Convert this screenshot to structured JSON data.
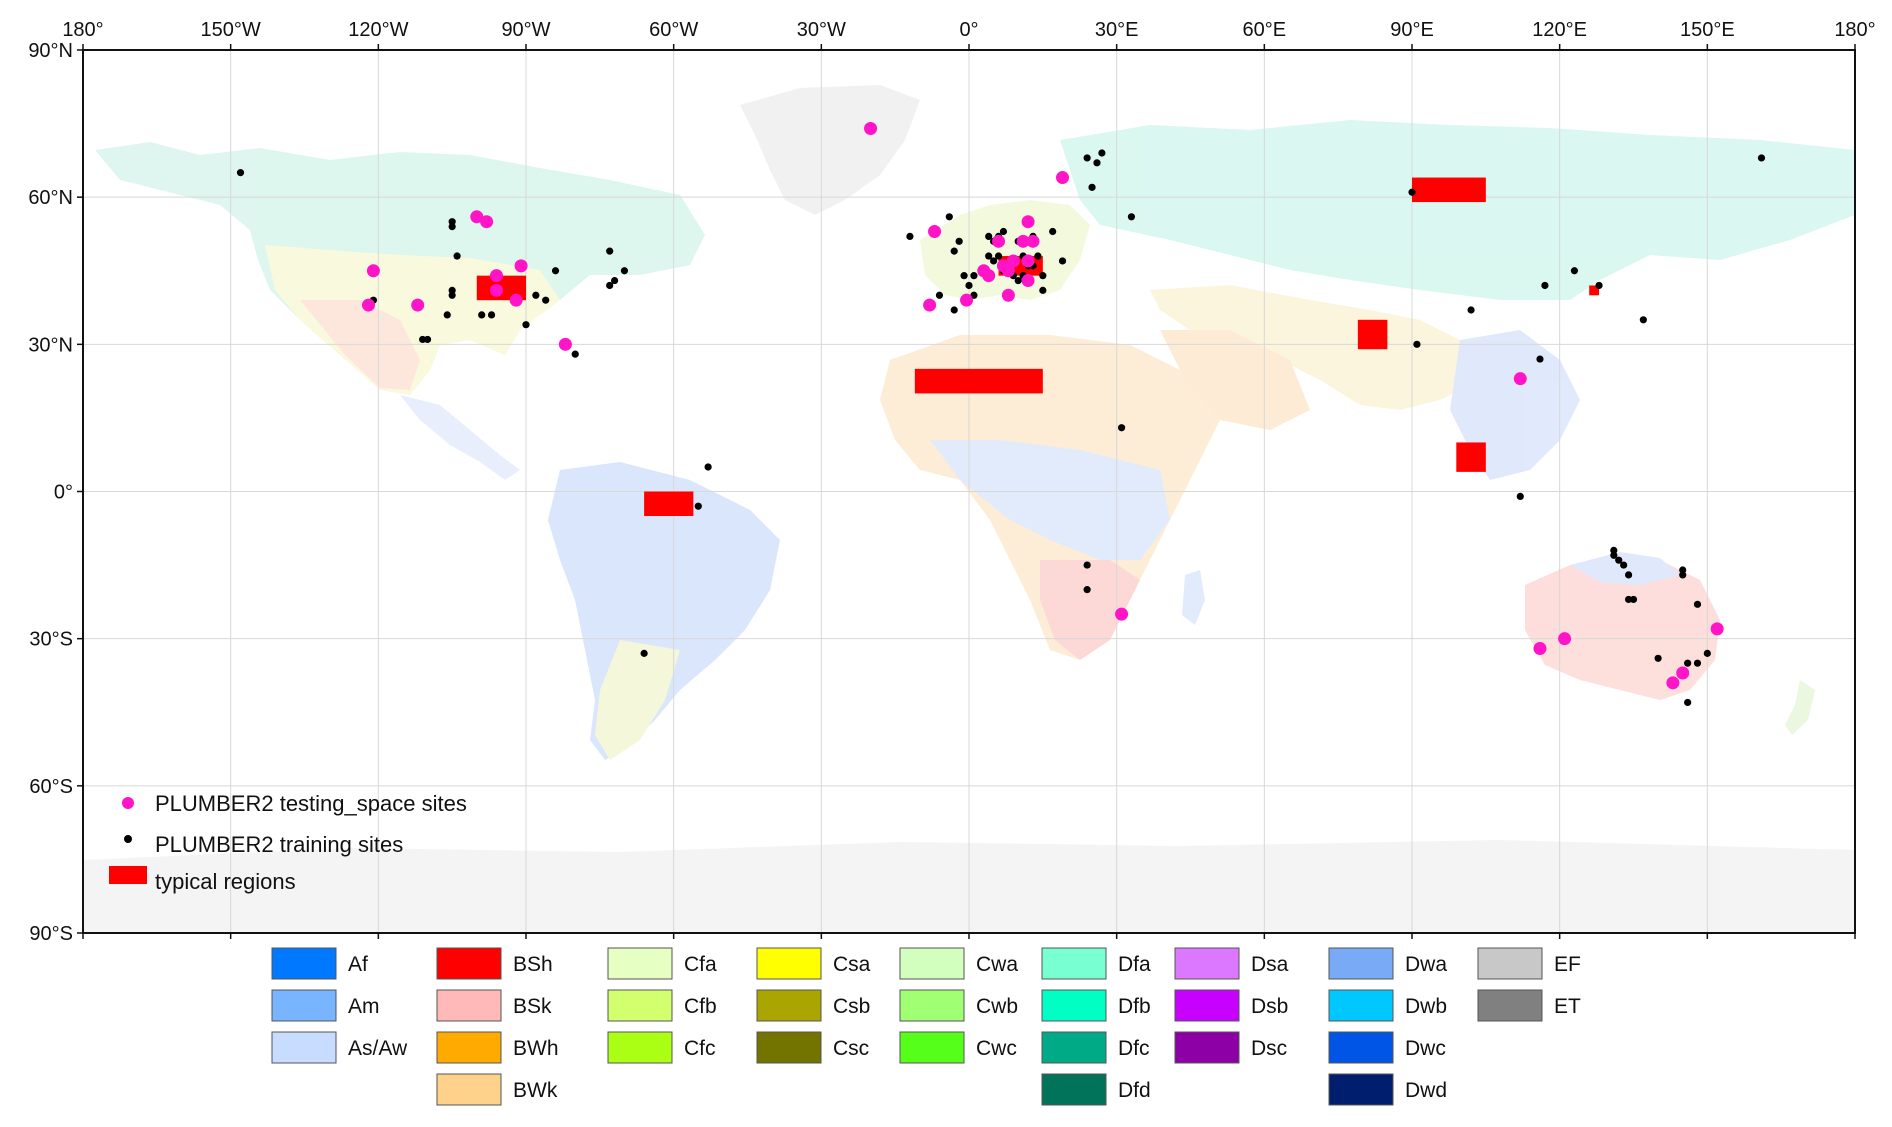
{
  "map": {
    "x_ticks": [
      {
        "lon": -180,
        "label": "180°"
      },
      {
        "lon": -150,
        "label": "150°W"
      },
      {
        "lon": -120,
        "label": "120°W"
      },
      {
        "lon": -90,
        "label": "90°W"
      },
      {
        "lon": -60,
        "label": "60°W"
      },
      {
        "lon": -30,
        "label": "30°W"
      },
      {
        "lon": 0,
        "label": "0°"
      },
      {
        "lon": 30,
        "label": "30°E"
      },
      {
        "lon": 60,
        "label": "60°E"
      },
      {
        "lon": 90,
        "label": "90°E"
      },
      {
        "lon": 120,
        "label": "120°E"
      },
      {
        "lon": 150,
        "label": "150°E"
      },
      {
        "lon": 180,
        "label": "180°"
      }
    ],
    "y_ticks": [
      {
        "lat": 90,
        "label": "90°N"
      },
      {
        "lat": 60,
        "label": "60°N"
      },
      {
        "lat": 30,
        "label": "30°N"
      },
      {
        "lat": 0,
        "label": "0°"
      },
      {
        "lat": -30,
        "label": "30°S"
      },
      {
        "lat": -60,
        "label": "60°S"
      },
      {
        "lat": -90,
        "label": "90°S"
      }
    ],
    "grid": true,
    "legend": {
      "placement": "bottom-left",
      "items": [
        {
          "label": "PLUMBER2 testing_space sites",
          "kind": "testing"
        },
        {
          "label": "PLUMBER2 training sites",
          "kind": "training"
        },
        {
          "label": "typical regions",
          "kind": "region"
        }
      ]
    },
    "colors": {
      "testing": "#ff14c8",
      "training": "#000000",
      "region": "#ff0000",
      "ocean": "#ffffff"
    },
    "typical_regions": [
      {
        "lon": [
          -100,
          -90
        ],
        "lat": [
          39,
          44
        ]
      },
      {
        "lon": [
          -11,
          15
        ],
        "lat": [
          20,
          25
        ]
      },
      {
        "lon": [
          -66,
          -56
        ],
        "lat": [
          -5,
          0
        ]
      },
      {
        "lon": [
          6,
          15
        ],
        "lat": [
          44,
          48
        ]
      },
      {
        "lon": [
          90,
          105
        ],
        "lat": [
          59,
          64
        ]
      },
      {
        "lon": [
          79,
          85
        ],
        "lat": [
          29,
          35
        ]
      },
      {
        "lon": [
          99,
          105
        ],
        "lat": [
          4,
          10
        ]
      },
      {
        "lon": [
          126,
          128
        ],
        "lat": [
          40,
          42
        ]
      }
    ],
    "testing_sites": [
      [
        -20,
        74
      ],
      [
        -100,
        56
      ],
      [
        -98,
        55
      ],
      [
        -121,
        45
      ],
      [
        -122,
        38
      ],
      [
        -112,
        38
      ],
      [
        -96,
        44
      ],
      [
        -96,
        41
      ],
      [
        -92,
        39
      ],
      [
        -91,
        46
      ],
      [
        -82,
        30
      ],
      [
        -7,
        53
      ],
      [
        -8,
        38
      ],
      [
        -0.5,
        39
      ],
      [
        3,
        45
      ],
      [
        4,
        44
      ],
      [
        6,
        51
      ],
      [
        7,
        46
      ],
      [
        8,
        45
      ],
      [
        9,
        47
      ],
      [
        8,
        40
      ],
      [
        11,
        51
      ],
      [
        12,
        55
      ],
      [
        13,
        51
      ],
      [
        12,
        43
      ],
      [
        12,
        47
      ],
      [
        19,
        64
      ],
      [
        31,
        -25
      ],
      [
        112,
        23
      ],
      [
        116,
        -32
      ],
      [
        121,
        -30
      ],
      [
        143,
        -39
      ],
      [
        145,
        -37
      ],
      [
        152,
        -28
      ]
    ],
    "training_sites": [
      [
        -148,
        65
      ],
      [
        -105,
        54
      ],
      [
        -105,
        55
      ],
      [
        -104,
        48
      ],
      [
        -105,
        41
      ],
      [
        -105,
        40
      ],
      [
        -106,
        36
      ],
      [
        -97,
        36
      ],
      [
        -99,
        36
      ],
      [
        -110,
        31
      ],
      [
        -111,
        31
      ],
      [
        -121,
        39
      ],
      [
        -90,
        34
      ],
      [
        -88,
        40
      ],
      [
        -86,
        39
      ],
      [
        -84,
        45
      ],
      [
        -80,
        28
      ],
      [
        -73,
        49
      ],
      [
        -72,
        43
      ],
      [
        -70,
        45
      ],
      [
        -73,
        42
      ],
      [
        -53,
        5
      ],
      [
        -55,
        -3
      ],
      [
        -66,
        -33
      ],
      [
        -12,
        52
      ],
      [
        -4,
        56
      ],
      [
        -2,
        51
      ],
      [
        -3,
        49
      ],
      [
        -1,
        44
      ],
      [
        -6,
        40
      ],
      [
        1,
        44
      ],
      [
        0,
        42
      ],
      [
        1,
        40
      ],
      [
        -3,
        37
      ],
      [
        4,
        52
      ],
      [
        4,
        48
      ],
      [
        5,
        51
      ],
      [
        5,
        47
      ],
      [
        6,
        52
      ],
      [
        7,
        53
      ],
      [
        6,
        48
      ],
      [
        7,
        45
      ],
      [
        9,
        47
      ],
      [
        9,
        44
      ],
      [
        10,
        51
      ],
      [
        10,
        43
      ],
      [
        11,
        48
      ],
      [
        11,
        44
      ],
      [
        12,
        46
      ],
      [
        13,
        52
      ],
      [
        13,
        46
      ],
      [
        14,
        48
      ],
      [
        15,
        44
      ],
      [
        15,
        41
      ],
      [
        17,
        53
      ],
      [
        19,
        47
      ],
      [
        24,
        68
      ],
      [
        25,
        62
      ],
      [
        26,
        67
      ],
      [
        27,
        69
      ],
      [
        33,
        56
      ],
      [
        31,
        13
      ],
      [
        24,
        -15
      ],
      [
        24,
        -20
      ],
      [
        90,
        61
      ],
      [
        91,
        30
      ],
      [
        102,
        37
      ],
      [
        112,
        -1
      ],
      [
        116,
        27
      ],
      [
        117,
        42
      ],
      [
        123,
        45
      ],
      [
        128,
        42
      ],
      [
        137,
        35
      ],
      [
        161,
        68
      ],
      [
        131,
        -12
      ],
      [
        131,
        -13
      ],
      [
        132,
        -14
      ],
      [
        133,
        -15
      ],
      [
        134,
        -17
      ],
      [
        134,
        -22
      ],
      [
        135,
        -22
      ],
      [
        145,
        -16
      ],
      [
        145,
        -17
      ],
      [
        148,
        -23
      ],
      [
        140,
        -34
      ],
      [
        146,
        -35
      ],
      [
        148,
        -35
      ],
      [
        150,
        -33
      ],
      [
        146,
        -43
      ]
    ],
    "koppen_legend": [
      {
        "label": "Af",
        "color": "#0078ff"
      },
      {
        "label": "Am",
        "color": "#78b4ff"
      },
      {
        "label": "As/Aw",
        "color": "#c8dcff"
      },
      {
        "label": "BSh",
        "color": "#ff0000"
      },
      {
        "label": "BSk",
        "color": "#ffb9b9"
      },
      {
        "label": "BWh",
        "color": "#ffaa00"
      },
      {
        "label": "BWk",
        "color": "#ffd28c"
      },
      {
        "label": "Cfa",
        "color": "#e6ffc3"
      },
      {
        "label": "Cfb",
        "color": "#d2ff6e"
      },
      {
        "label": "Cfc",
        "color": "#aaff14"
      },
      {
        "label": "Csa",
        "color": "#ffff00"
      },
      {
        "label": "Csb",
        "color": "#aaa500"
      },
      {
        "label": "Csc",
        "color": "#737300"
      },
      {
        "label": "Cwa",
        "color": "#d2ffbe"
      },
      {
        "label": "Cwb",
        "color": "#a0ff73"
      },
      {
        "label": "Cwc",
        "color": "#55ff19"
      },
      {
        "label": "Dfa",
        "color": "#78ffd2"
      },
      {
        "label": "Dfb",
        "color": "#00ffc3"
      },
      {
        "label": "Dfc",
        "color": "#00aa87"
      },
      {
        "label": "Dfd",
        "color": "#00735a"
      },
      {
        "label": "Dsa",
        "color": "#dc78ff"
      },
      {
        "label": "Dsb",
        "color": "#c800ff"
      },
      {
        "label": "Dsc",
        "color": "#8c00a5"
      },
      {
        "label": "Dwa",
        "color": "#78aaf5"
      },
      {
        "label": "Dwb",
        "color": "#00c8ff"
      },
      {
        "label": "Dwc",
        "color": "#0055e6"
      },
      {
        "label": "Dwd",
        "color": "#001e6e"
      },
      {
        "label": "EF",
        "color": "#c8c8c8"
      },
      {
        "label": "ET",
        "color": "#808080"
      }
    ],
    "koppen_columns": [
      [
        "Af",
        "Am",
        "As/Aw"
      ],
      [
        "BSh",
        "BSk",
        "BWh",
        "BWk"
      ],
      [
        "Cfa",
        "Cfb",
        "Cfc"
      ],
      [
        "Csa",
        "Csb",
        "Csc"
      ],
      [
        "Cwa",
        "Cwb",
        "Cwc"
      ],
      [
        "Dfa",
        "Dfb",
        "Dfc",
        "Dfd"
      ],
      [
        "Dsa",
        "Dsb",
        "Dsc"
      ],
      [
        "Dwa",
        "Dwb",
        "Dwc",
        "Dwd"
      ],
      [
        "EF",
        "ET"
      ]
    ]
  }
}
